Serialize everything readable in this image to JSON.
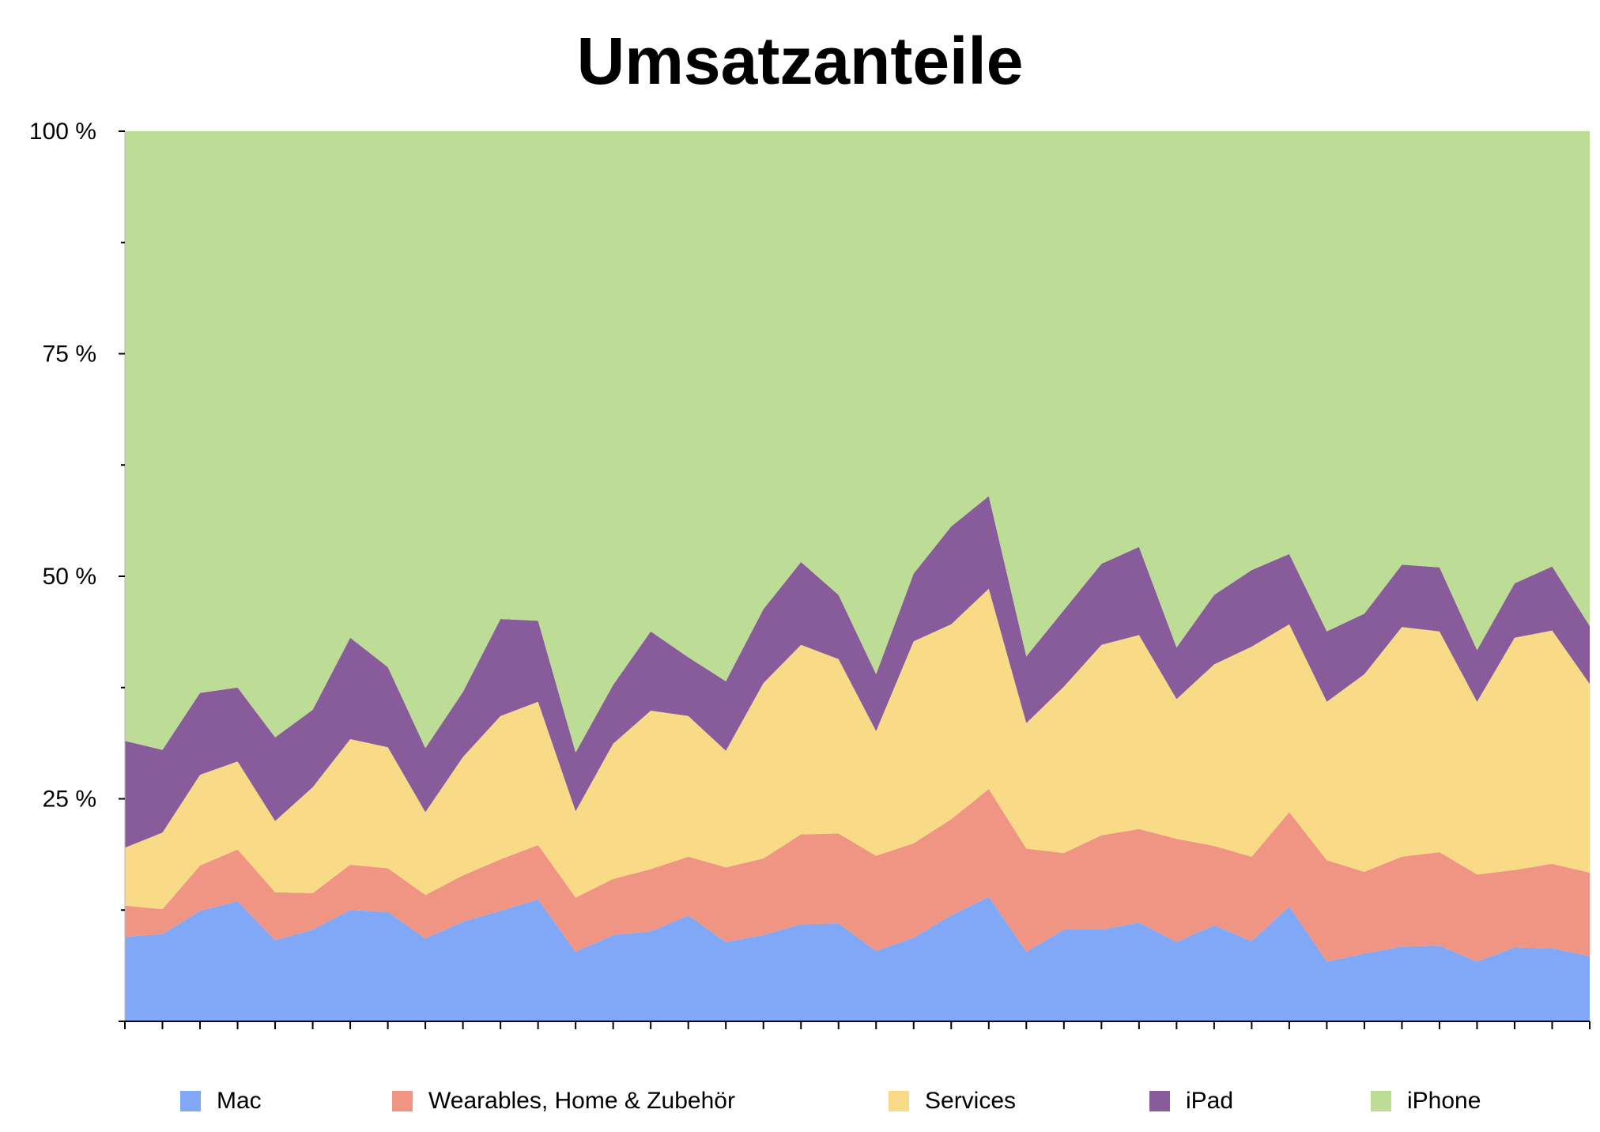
{
  "chart_data": {
    "type": "area",
    "stacked": true,
    "percent": true,
    "title": "Umsatzanteile",
    "xlabel": "",
    "ylabel": "",
    "ylim": [
      0,
      100
    ],
    "y_ticks": [
      {
        "value": 100,
        "label": "100 %"
      },
      {
        "value": 75,
        "label": "75 %"
      },
      {
        "value": 50,
        "label": "50 %"
      },
      {
        "value": 25,
        "label": "25 %"
      }
    ],
    "y_minor_ticks": [
      12.5,
      37.5,
      62.5,
      87.5
    ],
    "x_points": 40,
    "grid": false,
    "legend_position": "bottom",
    "series": [
      {
        "name": "Mac",
        "color": "#80a8f7",
        "values": [
          9.5,
          9.8,
          12.4,
          13.5,
          9.1,
          10.3,
          12.5,
          12.3,
          9.3,
          11.2,
          12.4,
          13.7,
          7.8,
          9.7,
          10.1,
          11.9,
          8.9,
          9.7,
          10.9,
          11.0,
          7.9,
          9.4,
          11.9,
          14.0,
          7.8,
          10.3,
          10.3,
          11.1,
          8.9,
          10.8,
          9.0,
          12.9,
          6.7,
          7.6,
          8.4,
          8.5,
          6.7,
          8.3,
          8.2,
          7.3
        ]
      },
      {
        "name": "Wearables, Home & Zubehör",
        "color": "#f09584",
        "values": [
          3.5,
          2.8,
          5.1,
          5.8,
          5.4,
          4.1,
          5.1,
          4.9,
          4.9,
          5.2,
          5.8,
          6.1,
          6.1,
          6.3,
          7.0,
          6.6,
          8.4,
          8.6,
          10.1,
          10.1,
          10.7,
          10.6,
          10.8,
          12.1,
          11.6,
          8.6,
          10.6,
          10.5,
          11.6,
          8.9,
          9.5,
          10.6,
          11.4,
          9.2,
          10.1,
          10.5,
          9.8,
          8.7,
          9.5,
          9.4
        ]
      },
      {
        "name": "Services",
        "color": "#f9da87",
        "values": [
          6.5,
          8.6,
          10.2,
          9.9,
          8.0,
          11.9,
          14.1,
          13.6,
          9.3,
          13.3,
          16.1,
          16.1,
          9.7,
          15.2,
          17.8,
          15.8,
          13.1,
          19.7,
          21.3,
          19.6,
          14.0,
          22.7,
          21.9,
          22.5,
          14.1,
          18.7,
          21.4,
          21.8,
          15.7,
          20.4,
          23.6,
          21.1,
          17.8,
          22.2,
          25.8,
          24.8,
          19.4,
          26.1,
          26.2,
          21.2
        ]
      },
      {
        "name": "iPad",
        "color": "#885b9a",
        "values": [
          12.0,
          9.3,
          9.2,
          8.3,
          9.4,
          8.7,
          11.4,
          9.0,
          7.2,
          7.3,
          10.9,
          9.1,
          6.6,
          6.6,
          8.9,
          6.6,
          7.8,
          8.3,
          9.3,
          7.2,
          6.4,
          7.6,
          11.0,
          10.4,
          7.5,
          8.6,
          9.1,
          9.9,
          5.8,
          7.8,
          8.6,
          7.9,
          7.9,
          6.8,
          7.0,
          7.2,
          5.8,
          6.1,
          7.2,
          6.5
        ]
      },
      {
        "name": "iPhone",
        "color": "#bddd97",
        "values": [
          68.5,
          69.5,
          63.1,
          62.5,
          68.1,
          65.0,
          56.9,
          60.2,
          69.3,
          63.0,
          54.8,
          55.0,
          69.8,
          62.2,
          56.2,
          59.1,
          61.8,
          53.7,
          48.4,
          52.1,
          61.0,
          49.7,
          44.4,
          41.0,
          59.0,
          53.8,
          48.6,
          46.7,
          58.0,
          52.1,
          49.3,
          47.5,
          56.2,
          54.2,
          48.7,
          49.0,
          58.3,
          50.8,
          48.9,
          55.6
        ]
      }
    ]
  }
}
